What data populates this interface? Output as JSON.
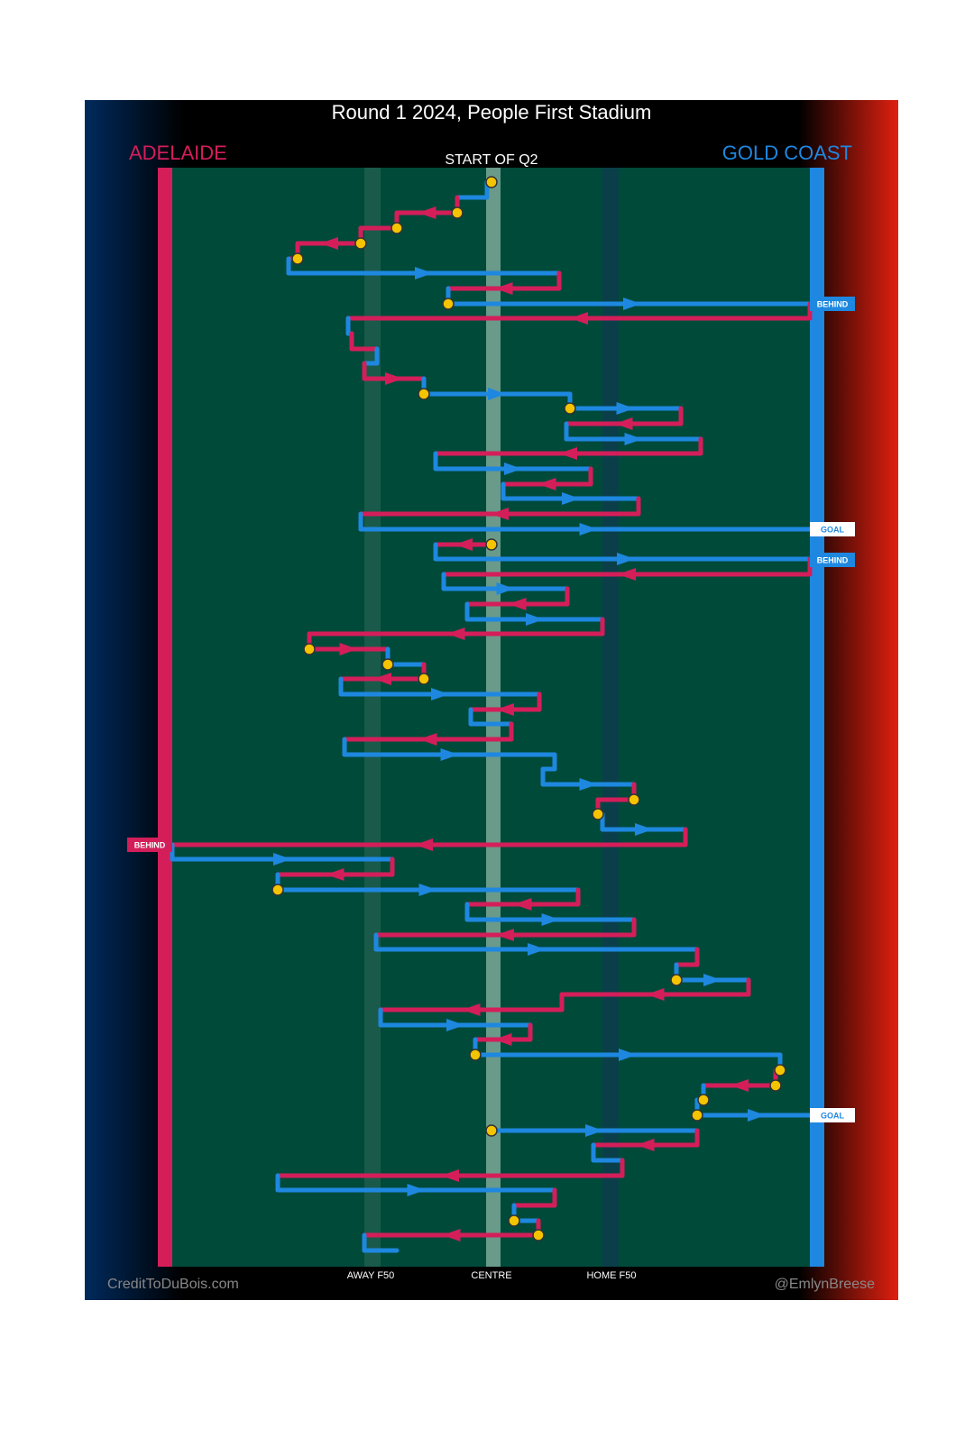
{
  "header": {
    "title": "Round 1 2024, People First Stadium",
    "home_team": "ADELAIDE",
    "away_team": "GOLD COAST",
    "period": "START OF Q2"
  },
  "zones": {
    "away_f50": "AWAY F50",
    "centre": "CENTRE",
    "home_f50": "HOME F50"
  },
  "outcomes": [
    "BEHIND",
    "GOAL",
    "BEHIND",
    "BEHIND",
    "GOAL"
  ],
  "footer": {
    "left": "CreditToDuBois.com",
    "right": "@EmlynBreese"
  }
}
